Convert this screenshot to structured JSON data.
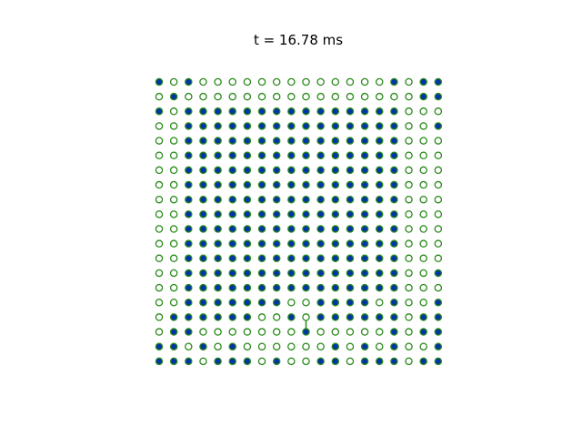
{
  "chart_data": {
    "type": "scatter",
    "title": "t = 16.78 ms",
    "xlabel": "",
    "ylabel": "",
    "grid": false,
    "axes_visible": false,
    "columns": 20,
    "rows": 20,
    "colors": {
      "filled_face": "#0033aa",
      "filled_edge": "#2a8a1a",
      "empty_edge": "#2a8a1a",
      "link": "#2a8a1a"
    },
    "occupancy_grid": [
      "10100000000000001011",
      "01000000000000000011",
      "10111111111111111000",
      "00111111111111111001",
      "00111111111111111000",
      "00111111111111111000",
      "00111111111111111000",
      "00111111111111111000",
      "00111111111111111000",
      "00111111111111111000",
      "00111111111111111000",
      "00111111111111111000",
      "00111111111111111000",
      "00111111111111111001",
      "00111111111111111000",
      "00111111100111101001",
      "01111110010111111011",
      "01100000001000001011",
      "11010100000010101001",
      "11101110100110111011"
    ],
    "links": [
      {
        "col": 10,
        "row_from": 16,
        "row_to": 17
      }
    ]
  }
}
